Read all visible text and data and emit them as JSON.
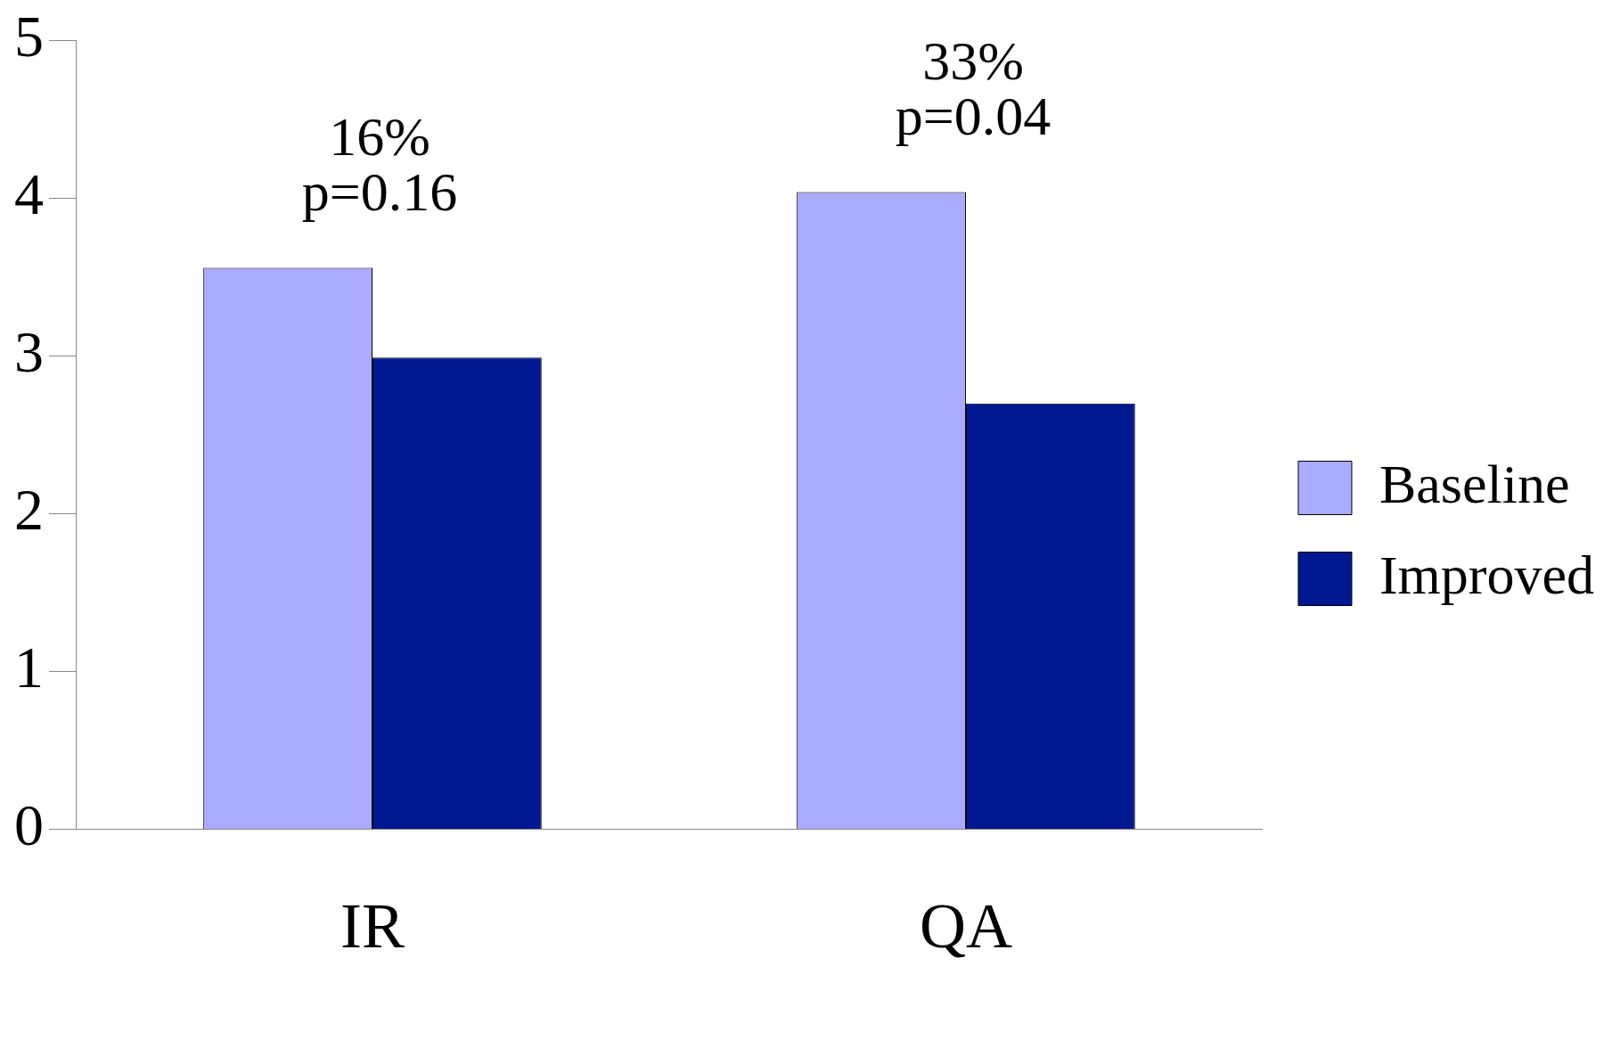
{
  "chart_data": {
    "type": "bar",
    "categories": [
      "IR",
      "QA"
    ],
    "series": [
      {
        "name": "Baseline",
        "color": "#aaaaff",
        "values": [
          3.56,
          4.04
        ]
      },
      {
        "name": "Improved",
        "color": "#001890",
        "values": [
          2.99,
          2.7
        ]
      }
    ],
    "ylim": [
      0,
      5
    ],
    "yticks": [
      0,
      1,
      2,
      3,
      4,
      5
    ],
    "grid": false,
    "legend": "right",
    "annotations": [
      "16%",
      "p=0.16",
      "33%",
      "p=0.04"
    ]
  }
}
